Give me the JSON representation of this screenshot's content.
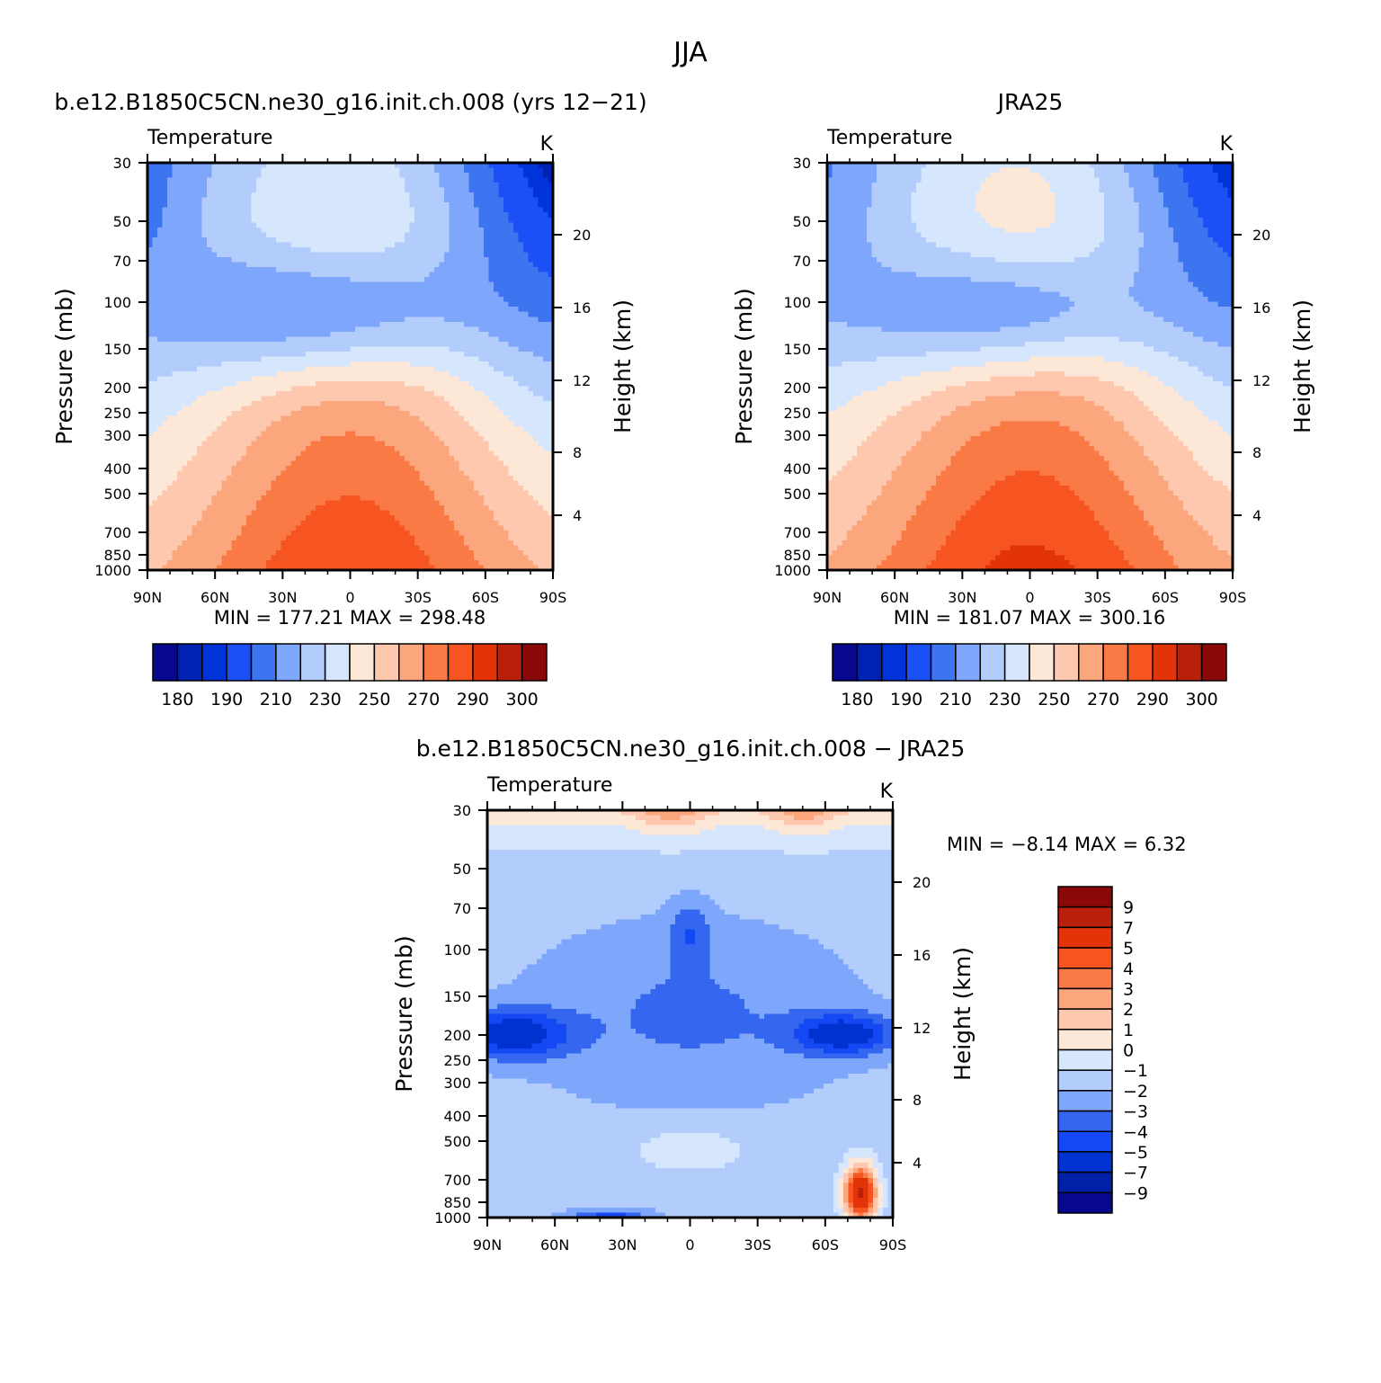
{
  "figure": {
    "title": "JJA"
  },
  "colors": {
    "abs_scale": [
      "#08088f",
      "#0022b2",
      "#0034d9",
      "#1a50f5",
      "#3d74f0",
      "#7ea6fa",
      "#b2ccfc",
      "#d6e6fd",
      "#fde7d7",
      "#fdc8ad",
      "#fca67e",
      "#fa7a45",
      "#f65522",
      "#e33308",
      "#b8200b",
      "#8a0808"
    ],
    "diff_scale": [
      "#08088f",
      "#0020a5",
      "#0032d0",
      "#1448f2",
      "#3466f0",
      "#7ea6fa",
      "#b2ccfc",
      "#d6e6fd",
      "#fde7d7",
      "#fdc8ad",
      "#fca67e",
      "#fa7a45",
      "#f65522",
      "#e33308",
      "#b8200b",
      "#8a0808"
    ]
  },
  "chart_data": [
    {
      "id": "model",
      "type": "contour",
      "title": "b.e12.B1850C5CN.ne30_g16.init.ch.008 (yrs 12-21)",
      "subtitle_left": "Temperature",
      "subtitle_right": "K",
      "xlabel": "",
      "ylabel": "Pressure (mb)",
      "ylabel_right": "Height (km)",
      "x_ticks": [
        "90N",
        "60N",
        "30N",
        "0",
        "30S",
        "60S",
        "90S"
      ],
      "y_ticks": [
        "30",
        "50",
        "70",
        "100",
        "150",
        "200",
        "250",
        "300",
        "400",
        "500",
        "700",
        "850",
        "1000"
      ],
      "y_right_ticks": [
        "20",
        "16",
        "12",
        "8",
        "4"
      ],
      "ylim": [
        1000,
        30
      ],
      "y_scale": "log",
      "stats": "MIN =  177.21   MAX =  298.48",
      "min": 177.21,
      "max": 298.48,
      "colorbar_labels": [
        "180",
        "190",
        "210",
        "230",
        "250",
        "270",
        "290",
        "300"
      ]
    },
    {
      "id": "obs",
      "type": "contour",
      "title": "JRA25",
      "subtitle_left": "Temperature",
      "subtitle_right": "K",
      "xlabel": "",
      "ylabel": "Pressure (mb)",
      "ylabel_right": "Height (km)",
      "x_ticks": [
        "90N",
        "60N",
        "30N",
        "0",
        "30S",
        "60S",
        "90S"
      ],
      "y_ticks": [
        "30",
        "50",
        "70",
        "100",
        "150",
        "200",
        "250",
        "300",
        "400",
        "500",
        "700",
        "850",
        "1000"
      ],
      "y_right_ticks": [
        "20",
        "16",
        "12",
        "8",
        "4"
      ],
      "ylim": [
        1000,
        30
      ],
      "y_scale": "log",
      "stats": "MIN =  181.07   MAX =  300.16",
      "min": 181.07,
      "max": 300.16,
      "colorbar_labels": [
        "180",
        "190",
        "210",
        "230",
        "250",
        "270",
        "290",
        "300"
      ]
    },
    {
      "id": "diff",
      "type": "contour",
      "title": "b.e12.B1850C5CN.ne30_g16.init.ch.008 - JRA25",
      "subtitle_left": "Temperature",
      "subtitle_right": "K",
      "xlabel": "",
      "ylabel": "Pressure (mb)",
      "ylabel_right": "Height (km)",
      "x_ticks": [
        "90N",
        "60N",
        "30N",
        "0",
        "30S",
        "60S",
        "90S"
      ],
      "y_ticks": [
        "30",
        "50",
        "70",
        "100",
        "150",
        "200",
        "250",
        "300",
        "400",
        "500",
        "700",
        "850",
        "1000"
      ],
      "y_right_ticks": [
        "20",
        "16",
        "12",
        "8",
        "4"
      ],
      "ylim": [
        1000,
        30
      ],
      "y_scale": "log",
      "stats": "MIN =   -8.14   MAX =    6.32",
      "min": -8.14,
      "max": 6.32,
      "colorbar_labels": [
        "9",
        "7",
        "5",
        "4",
        "3",
        "2",
        "1",
        "0",
        "-1",
        "-2",
        "-3",
        "-4",
        "-5",
        "-7",
        "-9"
      ]
    }
  ]
}
